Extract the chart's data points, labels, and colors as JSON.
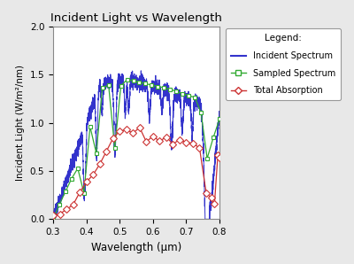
{
  "title": "Incident Light vs Wavelength",
  "xlabel": "Wavelength (μm)",
  "ylabel": "Incident Light (W/m²/nm)",
  "xlim": [
    0.3,
    0.8
  ],
  "ylim": [
    0,
    2
  ],
  "yticks": [
    0,
    0.5,
    1.0,
    1.5,
    2.0
  ],
  "xticks": [
    0.3,
    0.4,
    0.5,
    0.6,
    0.7,
    0.8
  ],
  "incident_color": "#3333cc",
  "sampled_color": "#33aa33",
  "absorption_color": "#cc3333",
  "legend_title": "Legend:",
  "legend_items": [
    "Incident Spectrum",
    "Sampled Spectrum",
    "Total Absorption"
  ],
  "bg_color": "#ffffff",
  "fig_color": "#e8e8e8"
}
